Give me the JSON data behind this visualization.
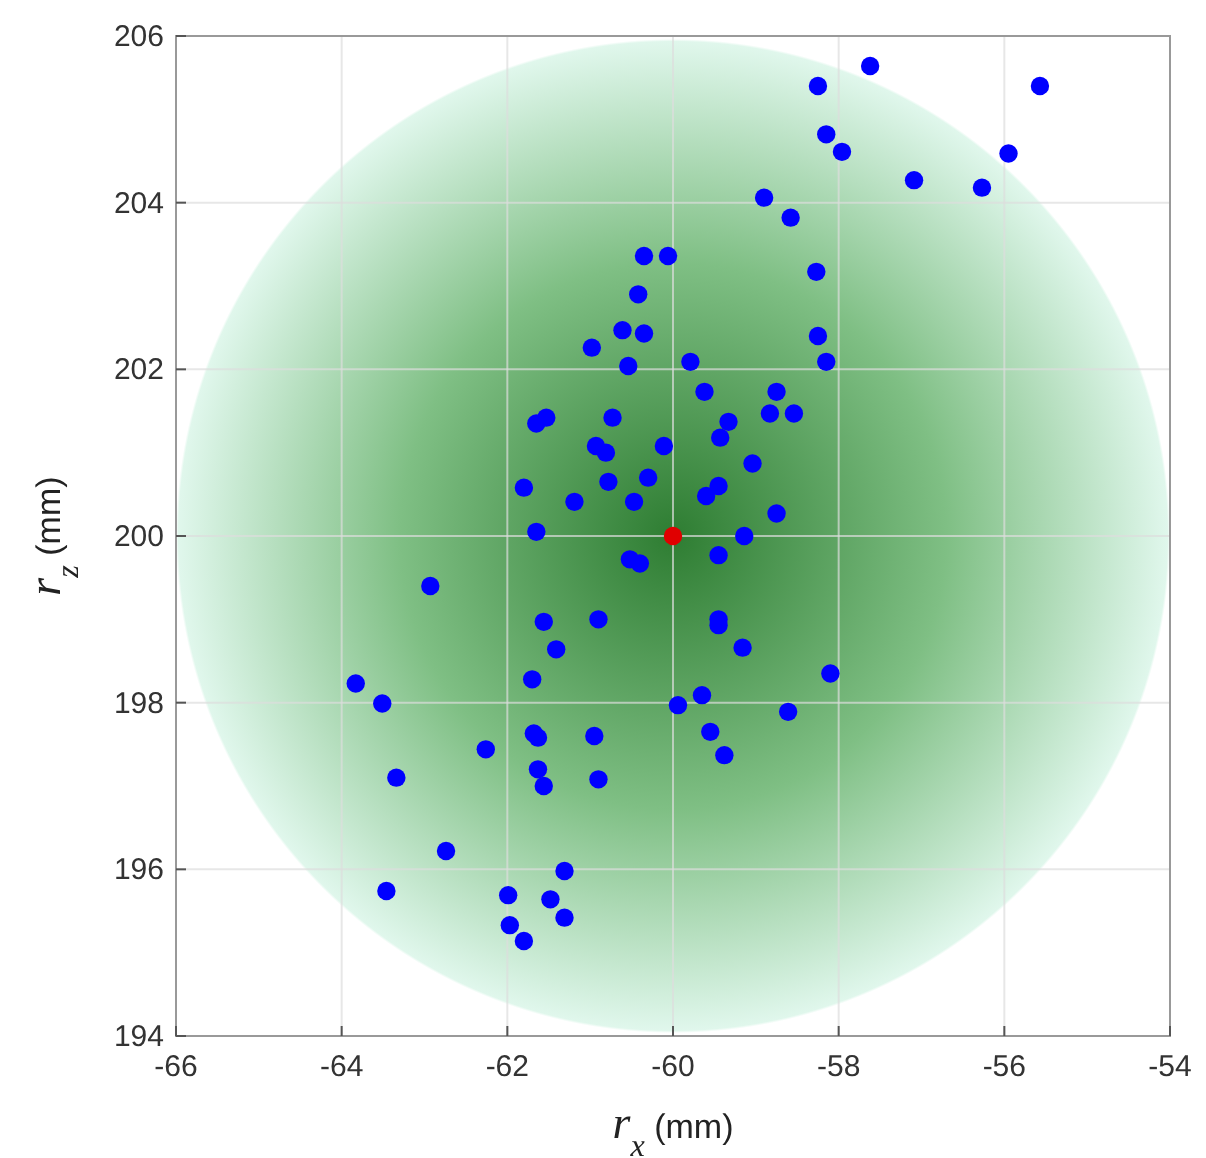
{
  "chart_data": {
    "type": "scatter",
    "xlabel": "r$_{x}$ (mm)",
    "ylabel": "r$_{z}$ (mm)",
    "xlim": [
      -66,
      -54
    ],
    "ylim": [
      194,
      206
    ],
    "xticks": [
      -66,
      -64,
      -62,
      -60,
      -58,
      -56,
      -54
    ],
    "yticks": [
      194,
      196,
      198,
      200,
      202,
      204,
      206
    ],
    "grid": true,
    "marker": "circle",
    "series": [
      {
        "color": "#0000ff",
        "x": [
          -60.35,
          -60.06,
          -60.42,
          -60.61,
          -60.35,
          -60.98,
          -60.54,
          -61.65,
          -61.53,
          -60.73,
          -60.11,
          -60.93,
          -60.81,
          -60.78,
          -60.3,
          -61.8,
          -61.19,
          -60.47,
          -61.65,
          -57.62,
          -58.25,
          -55.57,
          -58.15,
          -57.96,
          -55.95,
          -57.09,
          -56.27,
          -58.9,
          -58.58,
          -58.27,
          -58.25,
          -58.15,
          -59.79,
          -59.62,
          -58.75,
          -58.83,
          -58.54,
          -59.33,
          -59.43,
          -59.04,
          -59.45,
          -59.6,
          -58.75,
          -59.14,
          -60.52,
          -60.4,
          -62.93,
          -61.56,
          -60.9,
          -61.41,
          -61.7,
          -63.83,
          -63.51,
          -61.68,
          -61.63,
          -60.95,
          -62.26,
          -61.63,
          -61.56,
          -60.9,
          -63.34,
          -62.74,
          -61.31,
          -63.46,
          -61.99,
          -61.48,
          -61.31,
          -61.97,
          -61.8,
          -59.45,
          -59.45,
          -59.45,
          -59.16,
          -58.1,
          -59.65,
          -59.94,
          -58.61,
          -59.55,
          -59.38
        ],
        "values": [
          203.36,
          203.36,
          202.9,
          202.47,
          202.43,
          202.26,
          202.04,
          201.35,
          201.42,
          201.42,
          201.08,
          201.08,
          201.0,
          200.65,
          200.7,
          200.58,
          200.41,
          200.41,
          200.05,
          205.64,
          205.4,
          205.4,
          204.82,
          204.61,
          204.59,
          204.27,
          204.18,
          204.06,
          203.82,
          203.17,
          202.4,
          202.09,
          202.09,
          201.73,
          201.73,
          201.47,
          201.47,
          201.37,
          201.18,
          200.87,
          200.6,
          200.48,
          200.27,
          200.0,
          199.72,
          199.67,
          199.4,
          198.97,
          199.0,
          198.64,
          198.28,
          198.23,
          197.99,
          197.63,
          197.58,
          197.6,
          197.44,
          197.2,
          197.0,
          197.08,
          197.1,
          196.22,
          195.98,
          195.74,
          195.69,
          195.64,
          195.42,
          195.33,
          195.14,
          199.77,
          199.0,
          198.93,
          198.66,
          198.35,
          198.09,
          197.97,
          197.89,
          197.65,
          197.37
        ]
      },
      {
        "color": "#e00000",
        "x": [
          -60
        ],
        "values": [
          200
        ]
      }
    ]
  }
}
